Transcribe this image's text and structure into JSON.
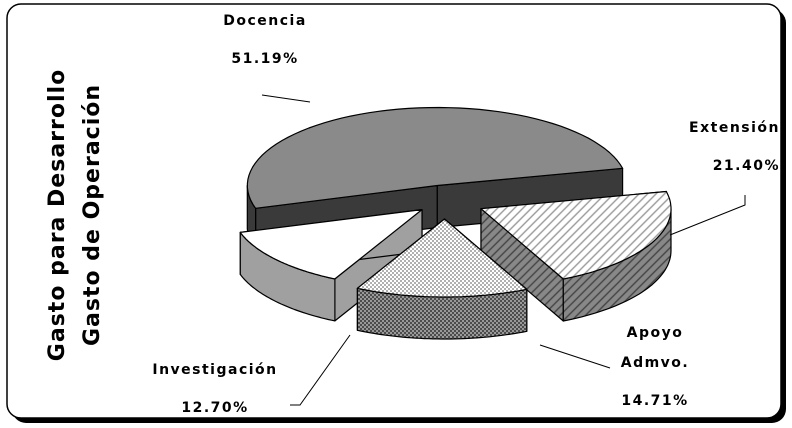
{
  "chart_data": {
    "type": "pie3d",
    "title": "Gasto para Desarrollo",
    "subtitle": "Gasto de Operación",
    "categories": [
      "Docencia",
      "Extensión",
      "Apoyo Admvo.",
      "Investigación"
    ],
    "values": [
      51.19,
      21.4,
      14.71,
      12.7
    ],
    "value_labels": [
      "51.19%",
      "21.40%",
      "14.71%",
      "12.70%"
    ],
    "colors": [
      "#8a8a8a",
      "#ffffff",
      "#ffffff",
      "#ffffff"
    ],
    "patterns": [
      null,
      "hatch",
      "dots",
      null
    ]
  }
}
